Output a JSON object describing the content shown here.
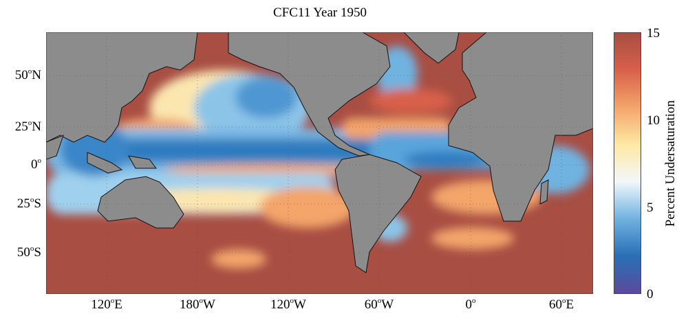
{
  "title": "CFC11 Year 1950",
  "y_ticks": [
    {
      "num": "50",
      "sup": "o",
      "hem": "N"
    },
    {
      "num": "25",
      "sup": "o",
      "hem": "N"
    },
    {
      "num": "0",
      "sup": "o",
      "hem": ""
    },
    {
      "num": "25",
      "sup": "o",
      "hem": "S"
    },
    {
      "num": "50",
      "sup": "o",
      "hem": "S"
    }
  ],
  "x_ticks": [
    {
      "num": "120",
      "sup": "o",
      "hem": "E"
    },
    {
      "num": "180",
      "sup": "o",
      "hem": "W"
    },
    {
      "num": "120",
      "sup": "o",
      "hem": "W"
    },
    {
      "num": "60",
      "sup": "o",
      "hem": "W"
    },
    {
      "num": "0",
      "sup": "o",
      "hem": ""
    },
    {
      "num": "60",
      "sup": "o",
      "hem": "E"
    }
  ],
  "colorbar": {
    "label": "Percent Undersaturation",
    "ticks": [
      "15",
      "10",
      "5",
      "0"
    ],
    "range": [
      0,
      15
    ],
    "colors": [
      "#5b4a9b",
      "#2a6fb5",
      "#6fb2e0",
      "#f2f7fb",
      "#fde9a3",
      "#f3a56a",
      "#d8604a",
      "#a84e43"
    ]
  },
  "colors": {
    "land": "#8c8c8c",
    "high": "#a84e43",
    "low": "#2a6fb5"
  }
}
